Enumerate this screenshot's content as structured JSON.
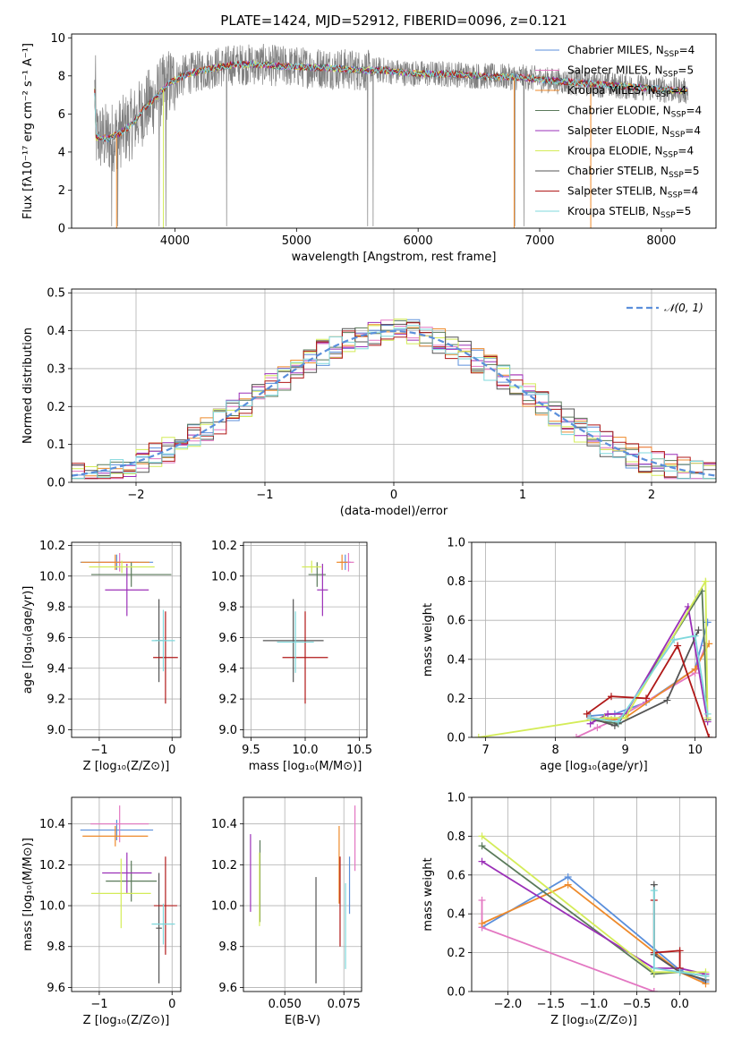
{
  "figure": {
    "title": "PLATE=1424, MJD=52912, FIBERID=0096, z=0.121"
  },
  "colors": {
    "Chabrier MILES": "#5b8fdb",
    "Salpeter MILES": "#e377c2",
    "Kroupa MILES": "#ee8a2b",
    "Chabrier ELODIE": "#5a7a5a",
    "Salpeter ELODIE": "#9b30b8",
    "Kroupa ELODIE": "#d4ec58",
    "Chabrier STELIB": "#555555",
    "Salpeter STELIB": "#b01818",
    "Kroupa STELIB": "#7fd8dc",
    "data": "#808080",
    "normal": "#5b8fdb"
  },
  "chart_data": [
    {
      "id": "spectrum",
      "type": "line",
      "xlabel": "wavelength [Angstrom, rest frame]",
      "ylabel": "Flux [fλ10⁻¹⁷ erg cm⁻² s⁻¹ A⁻¹]",
      "xlim": [
        3150,
        8450
      ],
      "ylim": [
        0,
        10.2
      ],
      "xticks": [
        4000,
        5000,
        6000,
        7000,
        8000
      ],
      "yticks": [
        0,
        2,
        4,
        6,
        8,
        10
      ],
      "legend_position": "right",
      "legend": [
        {
          "label": "Chabrier MILES, N",
          "sub": "SSP",
          "tail": "=4",
          "color_key": "Chabrier MILES"
        },
        {
          "label": "Salpeter MILES, N",
          "sub": "SSP",
          "tail": "=5",
          "color_key": "Salpeter MILES"
        },
        {
          "label": "Kroupa MILES, N",
          "sub": "SSP",
          "tail": "=4",
          "color_key": "Kroupa MILES"
        },
        {
          "label": "Chabrier ELODIE, N",
          "sub": "SSP",
          "tail": "=4",
          "color_key": "Chabrier ELODIE"
        },
        {
          "label": "Salpeter ELODIE, N",
          "sub": "SSP",
          "tail": "=4",
          "color_key": "Salpeter ELODIE"
        },
        {
          "label": "Kroupa ELODIE, N",
          "sub": "SSP",
          "tail": "=4",
          "color_key": "Kroupa ELODIE"
        },
        {
          "label": "Chabrier STELIB, N",
          "sub": "SSP",
          "tail": "=5",
          "color_key": "Chabrier STELIB"
        },
        {
          "label": "Salpeter STELIB, N",
          "sub": "SSP",
          "tail": "=4",
          "color_key": "Salpeter STELIB"
        },
        {
          "label": "Kroupa STELIB, N",
          "sub": "SSP",
          "tail": "=5",
          "color_key": "Kroupa STELIB"
        }
      ],
      "continuum": [
        [
          3350,
          4.8
        ],
        [
          3450,
          4.7
        ],
        [
          3550,
          5.0
        ],
        [
          3650,
          5.5
        ],
        [
          3750,
          6.3
        ],
        [
          3850,
          6.9
        ],
        [
          3950,
          7.6
        ],
        [
          4100,
          8.1
        ],
        [
          4300,
          8.4
        ],
        [
          4500,
          8.6
        ],
        [
          4700,
          8.6
        ],
        [
          4900,
          8.5
        ],
        [
          5100,
          8.45
        ],
        [
          5300,
          8.4
        ],
        [
          5500,
          8.3
        ],
        [
          5700,
          8.3
        ],
        [
          5900,
          8.15
        ],
        [
          6100,
          8.1
        ],
        [
          6300,
          8.1
        ],
        [
          6500,
          8.0
        ],
        [
          6700,
          7.95
        ],
        [
          6900,
          7.9
        ],
        [
          7100,
          7.75
        ],
        [
          7300,
          7.65
        ],
        [
          7500,
          7.55
        ],
        [
          7700,
          7.45
        ],
        [
          7900,
          7.35
        ],
        [
          8100,
          7.25
        ],
        [
          8220,
          7.2
        ]
      ],
      "data_range": [
        3340,
        8220
      ],
      "model_range": [
        3340,
        8220
      ]
    },
    {
      "id": "residuals",
      "type": "histogram",
      "xlabel": "(data-model)/error",
      "ylabel": "Normed distribution",
      "xlim": [
        -2.5,
        2.5
      ],
      "ylim": [
        0,
        0.51
      ],
      "xticks": [
        -2,
        -1,
        0,
        1,
        2
      ],
      "yticks": [
        0.0,
        0.1,
        0.2,
        0.3,
        0.4,
        0.5
      ],
      "bin_width": 0.1,
      "legend": [
        {
          "label": "𝒩(0, 1)",
          "color_key": "normal",
          "style": "dashed"
        }
      ],
      "legend_position": "top-right"
    },
    {
      "id": "age-vs-z",
      "type": "errorbar",
      "xlabel": "Z [log₁₀(Z/Z⊙)]",
      "ylabel": "age  [log₁₀(age/yr)]",
      "xlim": [
        -1.38,
        0.12
      ],
      "ylim": [
        8.95,
        10.22
      ],
      "xticks": [
        -1,
        0
      ],
      "yticks": [
        9.0,
        9.2,
        9.4,
        9.6,
        9.8,
        10.0,
        10.2
      ],
      "points": [
        {
          "k": "Chabrier MILES",
          "x": -0.76,
          "y": 10.09,
          "xe": 0.5,
          "ye": 0.05
        },
        {
          "k": "Salpeter MILES",
          "x": -0.72,
          "y": 10.09,
          "xe": 0.26,
          "ye": 0.06
        },
        {
          "k": "Kroupa MILES",
          "x": -0.78,
          "y": 10.09,
          "xe": 0.47,
          "ye": 0.05
        },
        {
          "k": "Chabrier ELODIE",
          "x": -0.56,
          "y": 10.01,
          "xe": 0.55,
          "ye": 0.08
        },
        {
          "k": "Salpeter ELODIE",
          "x": -0.62,
          "y": 9.91,
          "xe": 0.3,
          "ye": 0.17
        },
        {
          "k": "Kroupa ELODIE",
          "x": -0.69,
          "y": 10.06,
          "xe": 0.45,
          "ye": 0.04
        },
        {
          "k": "Chabrier STELIB",
          "x": -0.18,
          "y": 9.58,
          "xe": 0.05,
          "ye": 0.27
        },
        {
          "k": "Salpeter STELIB",
          "x": -0.09,
          "y": 9.47,
          "xe": 0.17,
          "ye": 0.3
        },
        {
          "k": "Kroupa STELIB",
          "x": -0.12,
          "y": 9.58,
          "xe": 0.16,
          "ye": 0.2
        }
      ]
    },
    {
      "id": "age-vs-mass",
      "type": "errorbar",
      "xlabel": "mass [log₁₀(M/M⊙)]",
      "ylabel": "",
      "xlim": [
        9.43,
        10.57
      ],
      "ylim": [
        8.95,
        10.22
      ],
      "xticks": [
        9.5,
        10.0,
        10.5
      ],
      "yticks": [
        9.0,
        9.2,
        9.4,
        9.6,
        9.8,
        10.0,
        10.2
      ],
      "points": [
        {
          "k": "Chabrier MILES",
          "x": 10.37,
          "y": 10.09,
          "xe": 0.05,
          "ye": 0.05
        },
        {
          "k": "Salpeter MILES",
          "x": 10.4,
          "y": 10.09,
          "xe": 0.05,
          "ye": 0.06
        },
        {
          "k": "Kroupa MILES",
          "x": 10.34,
          "y": 10.09,
          "xe": 0.05,
          "ye": 0.05
        },
        {
          "k": "Chabrier ELODIE",
          "x": 10.11,
          "y": 10.01,
          "xe": 0.08,
          "ye": 0.08
        },
        {
          "k": "Salpeter ELODIE",
          "x": 10.16,
          "y": 9.91,
          "xe": 0.05,
          "ye": 0.17
        },
        {
          "k": "Kroupa ELODIE",
          "x": 10.06,
          "y": 10.06,
          "xe": 0.09,
          "ye": 0.04
        },
        {
          "k": "Chabrier STELIB",
          "x": 9.89,
          "y": 9.58,
          "xe": 0.28,
          "ye": 0.27
        },
        {
          "k": "Salpeter STELIB",
          "x": 10.0,
          "y": 9.47,
          "xe": 0.21,
          "ye": 0.3
        },
        {
          "k": "Kroupa STELIB",
          "x": 9.91,
          "y": 9.57,
          "xe": 0.17,
          "ye": 0.2
        }
      ]
    },
    {
      "id": "weight-vs-age",
      "type": "line",
      "xlabel": "age  [log₁₀(age/yr)]",
      "ylabel": "mass weight",
      "xlim": [
        6.8,
        10.3
      ],
      "ylim": [
        0,
        1.0
      ],
      "xticks": [
        7,
        8,
        9,
        10
      ],
      "yticks": [
        0.0,
        0.2,
        0.4,
        0.6,
        0.8,
        1.0
      ],
      "grid": true,
      "series": [
        {
          "k": "Chabrier MILES",
          "x": [
            8.5,
            8.85,
            9.3,
            10.0,
            10.18
          ],
          "y": [
            0.11,
            0.12,
            0.18,
            0.35,
            0.59
          ]
        },
        {
          "k": "Salpeter MILES",
          "x": [
            8.3,
            8.6,
            8.85,
            10.0,
            10.15
          ],
          "y": [
            0.0,
            0.05,
            0.09,
            0.33,
            0.47
          ]
        },
        {
          "k": "Kroupa MILES",
          "x": [
            8.5,
            8.8,
            9.0,
            10.0,
            10.2
          ],
          "y": [
            0.1,
            0.09,
            0.1,
            0.35,
            0.48
          ]
        },
        {
          "k": "Chabrier ELODIE",
          "x": [
            8.5,
            8.9,
            10.1,
            10.18
          ],
          "y": [
            0.09,
            0.07,
            0.75,
            0.09
          ]
        },
        {
          "k": "Salpeter ELODIE",
          "x": [
            8.5,
            8.75,
            9.0,
            9.9,
            10.18
          ],
          "y": [
            0.07,
            0.12,
            0.12,
            0.67,
            0.08
          ]
        },
        {
          "k": "Kroupa ELODIE",
          "x": [
            6.9,
            8.7,
            9.0,
            10.15,
            10.18
          ],
          "y": [
            0.0,
            0.1,
            0.1,
            0.8,
            0.1
          ]
        },
        {
          "k": "Chabrier STELIB",
          "x": [
            8.5,
            8.85,
            9.6,
            10.05
          ],
          "y": [
            0.1,
            0.06,
            0.19,
            0.55
          ]
        },
        {
          "k": "Salpeter STELIB",
          "x": [
            8.45,
            8.8,
            9.3,
            9.75,
            10.2
          ],
          "y": [
            0.12,
            0.21,
            0.2,
            0.47,
            0.0
          ]
        },
        {
          "k": "Kroupa STELIB",
          "x": [
            8.5,
            8.9,
            9.7,
            10.0,
            10.18
          ],
          "y": [
            0.1,
            0.08,
            0.5,
            0.52,
            0.12
          ]
        }
      ]
    },
    {
      "id": "mass-vs-z",
      "type": "errorbar",
      "xlabel": "Z [log₁₀(Z/Z⊙)]",
      "ylabel": "mass [log₁₀(M/M⊙)]",
      "xlim": [
        -1.38,
        0.12
      ],
      "ylim": [
        9.58,
        10.53
      ],
      "xticks": [
        -1,
        0
      ],
      "yticks": [
        9.6,
        9.8,
        10.0,
        10.2,
        10.4
      ],
      "points": [
        {
          "k": "Chabrier MILES",
          "x": -0.76,
          "y": 10.37,
          "xe": 0.5,
          "ye": 0.05
        },
        {
          "k": "Salpeter MILES",
          "x": -0.72,
          "y": 10.4,
          "xe": 0.4,
          "ye": 0.09
        },
        {
          "k": "Kroupa MILES",
          "x": -0.78,
          "y": 10.34,
          "xe": 0.45,
          "ye": 0.05
        },
        {
          "k": "Chabrier ELODIE",
          "x": -0.56,
          "y": 10.12,
          "xe": 0.35,
          "ye": 0.1
        },
        {
          "k": "Salpeter ELODIE",
          "x": -0.62,
          "y": 10.16,
          "xe": 0.34,
          "ye": 0.1
        },
        {
          "k": "Kroupa ELODIE",
          "x": -0.7,
          "y": 10.06,
          "xe": 0.41,
          "ye": 0.17
        },
        {
          "k": "Chabrier STELIB",
          "x": -0.18,
          "y": 9.89,
          "xe": 0.04,
          "ye": 0.27
        },
        {
          "k": "Salpeter STELIB",
          "x": -0.09,
          "y": 10.0,
          "xe": 0.16,
          "ye": 0.24
        },
        {
          "k": "Kroupa STELIB",
          "x": -0.12,
          "y": 9.91,
          "xe": 0.16,
          "ye": 0.1
        }
      ]
    },
    {
      "id": "mass-vs-ebv",
      "type": "errorbar",
      "xlabel": "E(B-V)",
      "ylabel": "",
      "xlim": [
        0.0325,
        0.0825
      ],
      "ylim": [
        9.58,
        10.53
      ],
      "xticks": [
        0.05,
        0.075
      ],
      "yticks": [
        9.6,
        9.8,
        10.0,
        10.2,
        10.4
      ],
      "points": [
        {
          "k": "Chabrier MILES",
          "x": 0.0774,
          "y": 10.1,
          "xe": 0,
          "ye": 0.14
        },
        {
          "k": "Salpeter MILES",
          "x": 0.0797,
          "y": 10.33,
          "xe": 0,
          "ye": 0.16
        },
        {
          "k": "Kroupa MILES",
          "x": 0.073,
          "y": 10.2,
          "xe": 0,
          "ye": 0.19
        },
        {
          "k": "Chabrier ELODIE",
          "x": 0.0395,
          "y": 10.12,
          "xe": 0,
          "ye": 0.2
        },
        {
          "k": "Salpeter ELODIE",
          "x": 0.0355,
          "y": 10.16,
          "xe": 0,
          "ye": 0.19
        },
        {
          "k": "Kroupa ELODIE",
          "x": 0.0393,
          "y": 10.08,
          "xe": 0,
          "ye": 0.18
        },
        {
          "k": "Chabrier STELIB",
          "x": 0.0632,
          "y": 9.88,
          "xe": 0,
          "ye": 0.26
        },
        {
          "k": "Salpeter STELIB",
          "x": 0.0734,
          "y": 10.02,
          "xe": 0,
          "ye": 0.22
        },
        {
          "k": "Kroupa STELIB",
          "x": 0.0757,
          "y": 9.9,
          "xe": 0,
          "ye": 0.21
        }
      ]
    },
    {
      "id": "weight-vs-z",
      "type": "line",
      "xlabel": "Z [log₁₀(Z/Z⊙)]",
      "ylabel": "mass weight",
      "xlim": [
        -2.42,
        0.42
      ],
      "ylim": [
        0,
        1.0
      ],
      "xticks": [
        -2.0,
        -1.5,
        -1.0,
        -0.5,
        0.0
      ],
      "yticks": [
        0.0,
        0.2,
        0.4,
        0.6,
        0.8,
        1.0
      ],
      "grid": true,
      "series": [
        {
          "k": "Chabrier MILES",
          "x": [
            -2.3,
            -1.3,
            0.0,
            0.3
          ],
          "y": [
            0.33,
            0.59,
            0.11,
            0.05
          ]
        },
        {
          "k": "Salpeter MILES",
          "x": [
            -2.3,
            -2.3,
            -0.3,
            -0.3
          ],
          "y": [
            0.47,
            0.33,
            0.0,
            0.0
          ]
        },
        {
          "k": "Kroupa MILES",
          "x": [
            -2.3,
            -1.3,
            0.0,
            0.3
          ],
          "y": [
            0.35,
            0.55,
            0.1,
            0.04
          ]
        },
        {
          "k": "Chabrier ELODIE",
          "x": [
            -2.3,
            -0.3,
            0.0,
            0.3
          ],
          "y": [
            0.75,
            0.09,
            0.1,
            0.08
          ]
        },
        {
          "k": "Salpeter ELODIE",
          "x": [
            -2.3,
            -0.3,
            0.0,
            0.3
          ],
          "y": [
            0.67,
            0.12,
            0.12,
            0.09
          ]
        },
        {
          "k": "Kroupa ELODIE",
          "x": [
            -2.3,
            -0.3,
            0.0,
            0.3
          ],
          "y": [
            0.8,
            0.1,
            0.1,
            0.1
          ]
        },
        {
          "k": "Chabrier STELIB",
          "x": [
            -0.3,
            -0.3,
            0.0,
            0.3
          ],
          "y": [
            0.55,
            0.19,
            0.1,
            0.06
          ]
        },
        {
          "k": "Salpeter STELIB",
          "x": [
            -0.3,
            -0.3,
            0.0,
            0.0
          ],
          "y": [
            0.47,
            0.2,
            0.21,
            0.12
          ]
        },
        {
          "k": "Kroupa STELIB",
          "x": [
            -0.3,
            -0.3,
            0.0,
            0.3
          ],
          "y": [
            0.52,
            0.12,
            0.1,
            0.08
          ]
        }
      ]
    }
  ]
}
